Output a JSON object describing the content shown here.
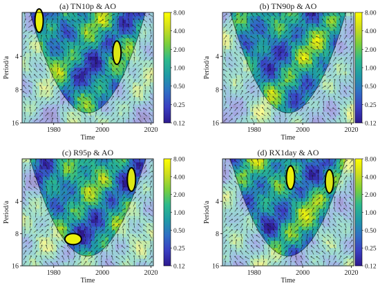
{
  "chart_data": [
    {
      "type": "heatmap",
      "title": "(a) TN10p & AO",
      "xlabel": "Time",
      "ylabel": "Period/a",
      "xlim": [
        1967,
        2021
      ],
      "ylim": [
        1.6,
        16
      ],
      "yscale": "log2",
      "xticks": [
        "1980",
        "2000",
        "2020"
      ],
      "yticks": [
        "4",
        "8",
        "16"
      ],
      "colorbar_ticks": [
        "8.00",
        "4.00",
        "2.00",
        "1.00",
        "0.50",
        "0.25",
        "0.12"
      ],
      "significant_regions": [
        {
          "x": 1974,
          "period": 1.9
        },
        {
          "x": 2006,
          "period": 3.7
        }
      ]
    },
    {
      "type": "heatmap",
      "title": "(b) TN90p & AO",
      "xlabel": "Time",
      "ylabel": "Period/a",
      "xlim": [
        1967,
        2021
      ],
      "ylim": [
        1.6,
        16
      ],
      "yscale": "log2",
      "xticks": [
        "1980",
        "2000",
        "2020"
      ],
      "yticks": [
        "4",
        "8",
        "16"
      ],
      "colorbar_ticks": [
        "8.00",
        "4.00",
        "2.00",
        "1.00",
        "0.50",
        "0.25",
        "0.12"
      ],
      "significant_regions": []
    },
    {
      "type": "heatmap",
      "title": "(c) R95p & AO",
      "xlabel": "Time",
      "ylabel": "Period/a",
      "xlim": [
        1967,
        2021
      ],
      "ylim": [
        1.6,
        16
      ],
      "yscale": "log2",
      "xticks": [
        "1980",
        "2000",
        "2020"
      ],
      "yticks": [
        "4",
        "8",
        "16"
      ],
      "colorbar_ticks": [
        "8.00",
        "4.00",
        "2.00",
        "1.00",
        "0.50",
        "0.25",
        "0.12"
      ],
      "significant_regions": [
        {
          "x": 1988,
          "period": 9.0
        },
        {
          "x": 2012,
          "period": 2.5
        }
      ]
    },
    {
      "type": "heatmap",
      "title": "(d) RX1day & AO",
      "xlabel": "Time",
      "ylabel": "Period/a",
      "xlim": [
        1967,
        2021
      ],
      "ylim": [
        1.6,
        16
      ],
      "yscale": "log2",
      "xticks": [
        "1980",
        "2000",
        "2020"
      ],
      "yticks": [
        "4",
        "8",
        "16"
      ],
      "colorbar_ticks": [
        "8.00",
        "4.00",
        "2.00",
        "1.00",
        "0.50",
        "0.25",
        "0.12"
      ],
      "significant_regions": [
        {
          "x": 1995,
          "period": 2.4
        },
        {
          "x": 2011,
          "period": 2.6
        }
      ]
    }
  ],
  "colormap": [
    "#ffff00",
    "#cddd1e",
    "#7acf3c",
    "#2db98c",
    "#1f9aa6",
    "#2f6fc4",
    "#3a3fc2",
    "#2d1a8f"
  ],
  "red_tick_panel": 2,
  "red_tick_index": 1
}
